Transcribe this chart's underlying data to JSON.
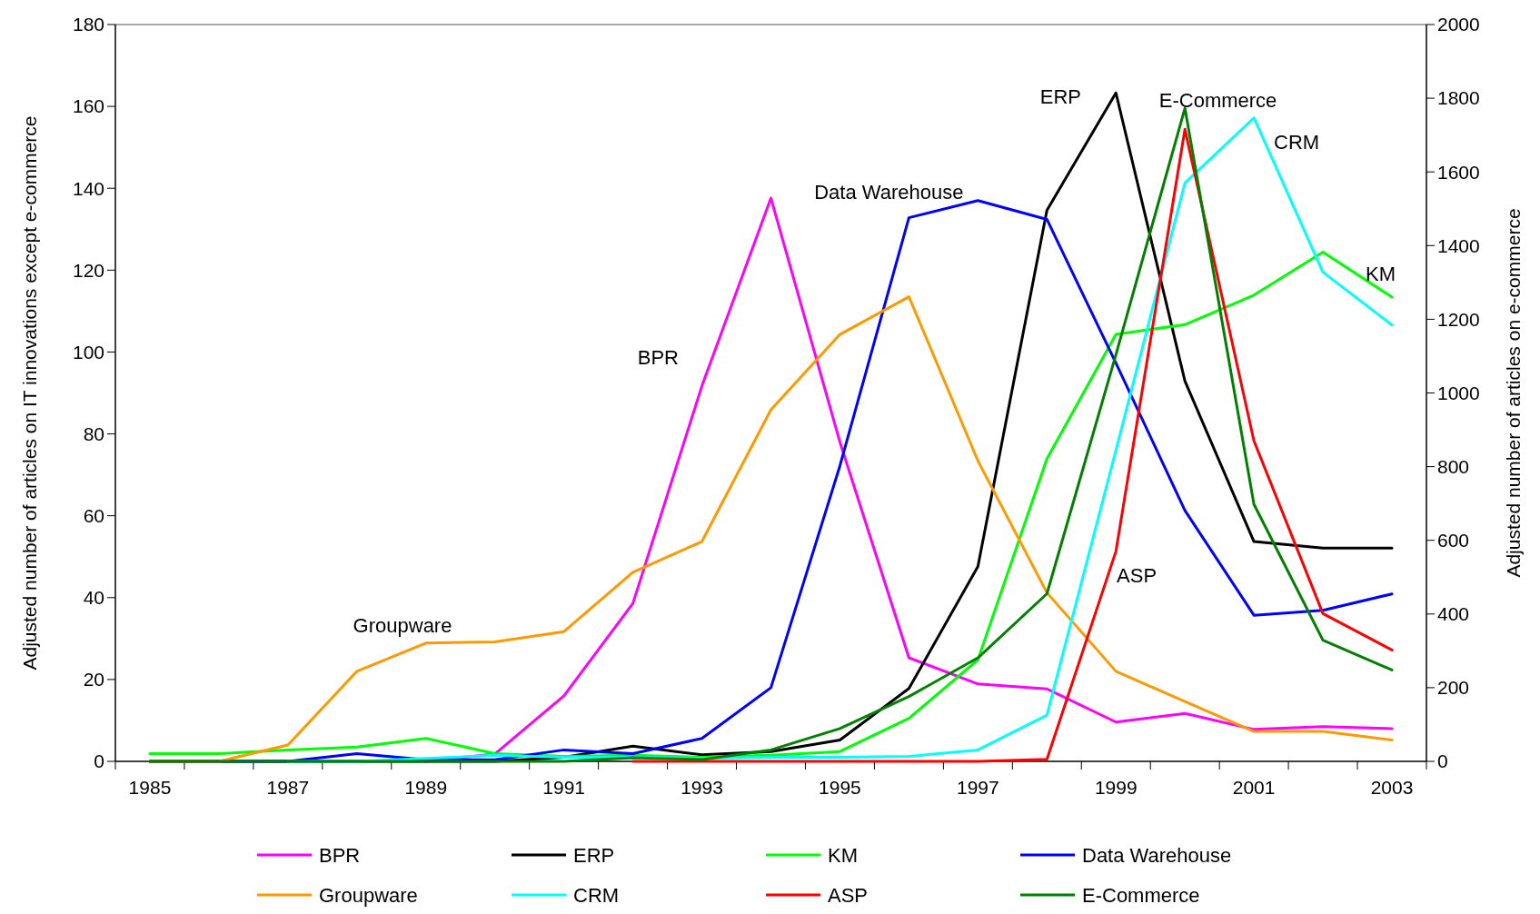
{
  "chart_data": {
    "type": "line",
    "categories": [
      "1985",
      null,
      "1987",
      null,
      "1989",
      null,
      "1991",
      null,
      "1993",
      null,
      "1995",
      null,
      "1997",
      null,
      "1999",
      null,
      "2001",
      null,
      "2003"
    ],
    "ylabel": "Adjusted number of articles on IT innovations except e-commerce",
    "y2label": "Adjusted number of articles on e-commerce",
    "ylim": [
      0,
      180
    ],
    "yticks": [
      0,
      20,
      40,
      60,
      80,
      100,
      120,
      140,
      160,
      180
    ],
    "y2lim": [
      0,
      2000
    ],
    "y2ticks": [
      0,
      200,
      400,
      600,
      800,
      1000,
      1200,
      1400,
      1600,
      1800,
      2000
    ],
    "grid": false,
    "legend": "bottom",
    "marker": "none",
    "line_style": "solid",
    "series": [
      {
        "name": "BPR",
        "color": "#ff00ff",
        "values": [
          null,
          null,
          null,
          null,
          0,
          1.8,
          16,
          38.6,
          91.7,
          137.6,
          78,
          25.3,
          18.9,
          17.7,
          9.6,
          11.7,
          7.8,
          8.5,
          8.0
        ]
      },
      {
        "name": "ERP",
        "color": "#000000",
        "values": [
          0,
          0,
          0,
          0,
          0,
          0,
          1.0,
          3.7,
          1.6,
          2.4,
          5.2,
          17.8,
          47.6,
          134.6,
          163.3,
          92.9,
          53.7,
          52.1,
          52.1
        ]
      },
      {
        "name": "KM",
        "color": "#00ff00",
        "values": [
          1.9,
          1.9,
          2.8,
          3.5,
          5.6,
          1.9,
          1.2,
          1.5,
          1.0,
          1.5,
          2.4,
          10.5,
          24.8,
          73.9,
          104.3,
          106.7,
          113.9,
          124.4,
          113.4
        ]
      },
      {
        "name": "Data Warehouse",
        "color": "#0000ff",
        "values": [
          0,
          0,
          0,
          1.9,
          0.4,
          0.4,
          2.8,
          1.9,
          5.6,
          18.0,
          72.2,
          132.8,
          137.0,
          132.4,
          97.3,
          61.3,
          35.7,
          36.9,
          40.9
        ]
      },
      {
        "name": "Groupware",
        "color": "#ff9900",
        "values": [
          0,
          0,
          4.0,
          22,
          28.9,
          29.2,
          31.7,
          46.2,
          53.7,
          85.9,
          104.3,
          113.5,
          73.4,
          41.2,
          22.0,
          14.6,
          7.3,
          7.3,
          5.2
        ]
      },
      {
        "name": "CRM",
        "color": "#00ffff",
        "values": [
          null,
          null,
          0,
          0,
          0.7,
          1.5,
          1.0,
          1.0,
          0.8,
          1.0,
          1.0,
          1.2,
          2.8,
          11.3,
          76,
          141.3,
          157.2,
          119.5,
          106.6
        ]
      },
      {
        "name": "ASP",
        "color": "#ff0000",
        "values": [
          null,
          null,
          null,
          null,
          null,
          null,
          null,
          0,
          0,
          0,
          0,
          0,
          0,
          0.5,
          51.3,
          154.4,
          78.3,
          36.1,
          27.2
        ]
      },
      {
        "name": "E-Commerce",
        "color": "#008000",
        "axis": "y2",
        "values": [
          0,
          0,
          0,
          0,
          0,
          0,
          0,
          10,
          5,
          31,
          89,
          176,
          281,
          455,
          1104,
          1773,
          698,
          329,
          248
        ]
      }
    ],
    "annotations": [
      "Groupware",
      "BPR",
      "Data Warehouse",
      "ERP",
      "E-Commerce",
      "CRM",
      "KM",
      "ASP"
    ]
  }
}
